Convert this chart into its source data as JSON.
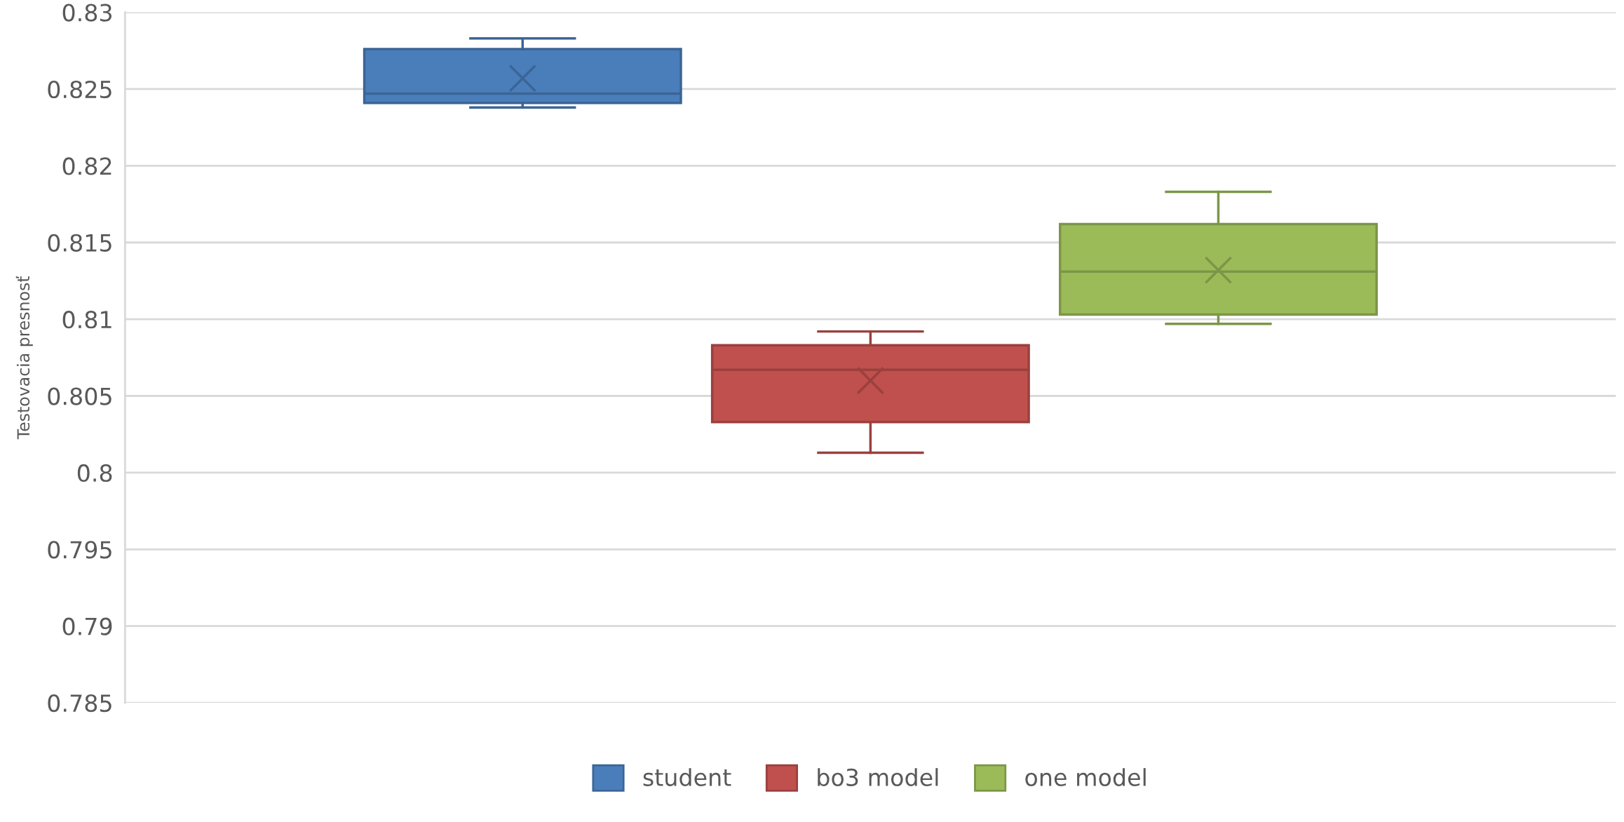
{
  "chart_data": {
    "type": "box",
    "ylabel": "Testovacia presnosť",
    "categories": [
      null
    ],
    "series": [
      {
        "name": "student",
        "color": "#4a7ebb",
        "boxes": [
          {
            "low": 0.8238,
            "q1": 0.8241,
            "median": 0.8247,
            "q3": 0.8276,
            "high": 0.8283,
            "mean": 0.8257
          }
        ]
      },
      {
        "name": "bo3 model",
        "color": "#c0504d",
        "boxes": [
          {
            "low": 0.8013,
            "q1": 0.8033,
            "median": 0.8067,
            "q3": 0.8083,
            "high": 0.8092,
            "mean": 0.806
          }
        ]
      },
      {
        "name": "one model",
        "color": "#9bbb59",
        "boxes": [
          {
            "low": 0.8097,
            "q1": 0.8103,
            "median": 0.8131,
            "q3": 0.8162,
            "high": 0.8183,
            "mean": 0.8132
          }
        ]
      }
    ],
    "ylim": [
      0.785,
      0.83
    ],
    "yticks": [
      {
        "value": 0.785,
        "label": "0.785"
      },
      {
        "value": 0.79,
        "label": "0.79"
      },
      {
        "value": 0.795,
        "label": "0.795"
      },
      {
        "value": 0.8,
        "label": "0.8"
      },
      {
        "value": 0.805,
        "label": "0.805"
      },
      {
        "value": 0.81,
        "label": "0.81"
      },
      {
        "value": 0.815,
        "label": "0.815"
      },
      {
        "value": 0.82,
        "label": "0.82"
      },
      {
        "value": 0.825,
        "label": "0.825"
      },
      {
        "value": 0.83,
        "label": "0.83"
      }
    ],
    "grid": "y",
    "legend": "bottom"
  }
}
